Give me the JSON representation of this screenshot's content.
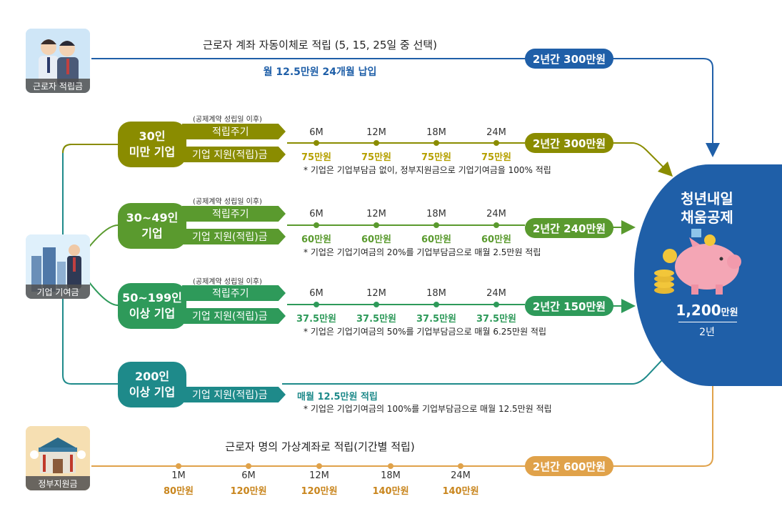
{
  "worker": {
    "caption": "근로자 적립금",
    "title": "근로자 계좌 자동이체로 적립 (5, 15, 25일 중 선택)",
    "subtitle": "월 12.5만원 24개월 납입",
    "total": "2년간 300만원"
  },
  "company": {
    "caption": "기업 기여금"
  },
  "tiers": [
    {
      "name_line1": "30인",
      "name_line2": "미만 기업",
      "note_top": "(공제계약 성립일 이후)",
      "schedule_label": "적립주기",
      "support_label": "기업 지원(적립)금",
      "months": [
        "6M",
        "12M",
        "18M",
        "24M"
      ],
      "amounts": [
        "75만원",
        "75만원",
        "75만원",
        "75만원"
      ],
      "footnote": "* 기업은 기업부담금 없이, 정부지원금으로 기업기여금을 100% 적립",
      "total": "2년간 300만원"
    },
    {
      "name_line1": "30~49인",
      "name_line2": "기업",
      "note_top": "(공제계약 성립일 이후)",
      "schedule_label": "적립주기",
      "support_label": "기업 지원(적립)금",
      "months": [
        "6M",
        "12M",
        "18M",
        "24M"
      ],
      "amounts": [
        "60만원",
        "60만원",
        "60만원",
        "60만원"
      ],
      "footnote": "* 기업은 기업기여금의 20%를 기업부담금으로 매월 2.5만원 적립",
      "total": "2년간 240만원"
    },
    {
      "name_line1": "50~199인",
      "name_line2": "이상 기업",
      "note_top": "(공제계약 성립일 이후)",
      "schedule_label": "적립주기",
      "support_label": "기업 지원(적립)금",
      "months": [
        "6M",
        "12M",
        "18M",
        "24M"
      ],
      "amounts": [
        "37.5만원",
        "37.5만원",
        "37.5만원",
        "37.5만원"
      ],
      "footnote": "* 기업은 기업기여금의 50%를 기업부담금으로 매월 6.25만원 적립",
      "total": "2년간 150만원"
    },
    {
      "name_line1": "200인",
      "name_line2": "이상 기업",
      "support_label": "기업 지원(적립)금",
      "monthly": "매월 12.5만원 적립",
      "footnote": "* 기업은 기업기여금의 100%를 기업부담금으로 매월 12.5만원 적립"
    }
  ],
  "government": {
    "caption": "정부지원금",
    "title": "근로자 명의 가상계좌로 적립(기간별 적립)",
    "months": [
      "1M",
      "6M",
      "12M",
      "18M",
      "24M"
    ],
    "amounts": [
      "80만원",
      "120만원",
      "120만원",
      "140만원",
      "140만원"
    ],
    "total": "2년간 600만원"
  },
  "result": {
    "title_line1": "청년내일",
    "title_line2": "채움공제",
    "amount": "1,200",
    "amount_unit": "만원",
    "period": "2년"
  },
  "colors": {
    "worker": "#1f5fa8",
    "tier1": "#8a8c00",
    "tier2": "#5a9a2e",
    "tier3": "#2e9a5a",
    "tier4": "#1e8a8a",
    "gov": "#e0a24a"
  }
}
